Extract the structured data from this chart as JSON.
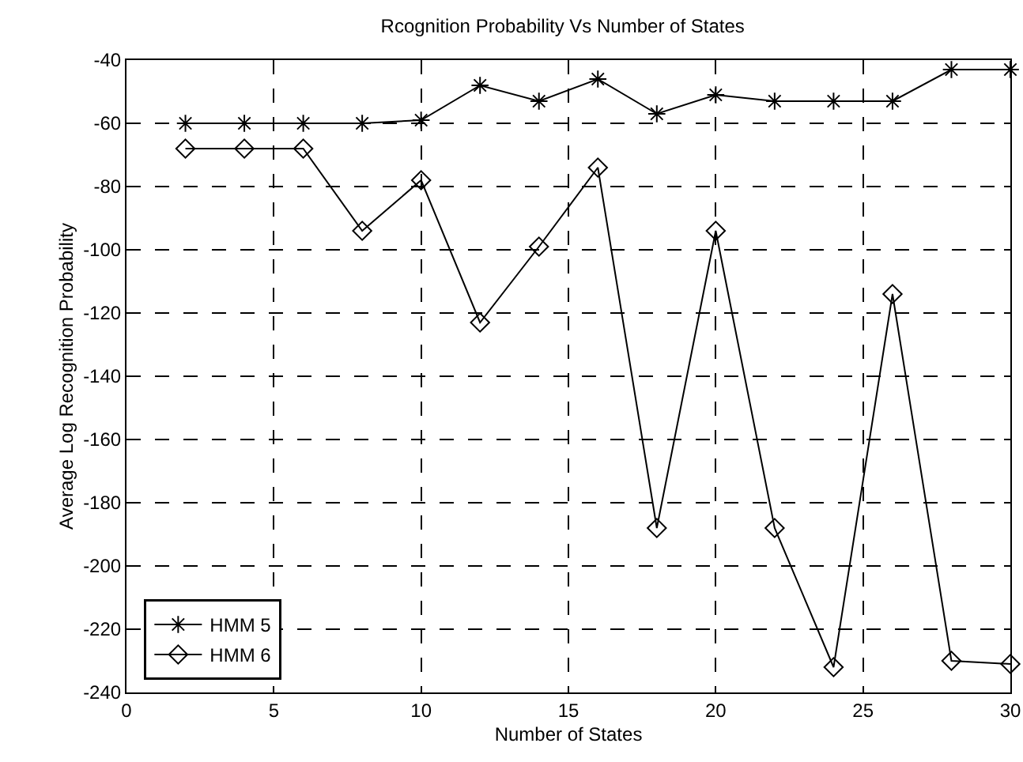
{
  "chart_data": {
    "type": "line",
    "title": "Rcognition Probability Vs Number of States",
    "xlabel": "Number of States",
    "ylabel": "Average Log Recognition Probability",
    "x": [
      2,
      4,
      6,
      8,
      10,
      12,
      14,
      16,
      18,
      20,
      22,
      24,
      26,
      28,
      30
    ],
    "series": [
      {
        "name": "HMM 5",
        "color": "#000000",
        "marker": "cross",
        "values": [
          -60,
          -60,
          -60,
          -60,
          -59,
          -48,
          -53,
          -46,
          -57,
          -51,
          -53,
          -53,
          -53,
          -43,
          -43
        ]
      },
      {
        "name": "HMM 6",
        "color": "#000000",
        "marker": "diamond",
        "values": [
          -68,
          -68,
          -68,
          -94,
          -78,
          -123,
          -99,
          -74,
          -188,
          -94,
          -188,
          -232,
          -114,
          -230,
          -231
        ]
      }
    ],
    "xlim": [
      0,
      30
    ],
    "xticks": [
      0,
      5,
      10,
      15,
      20,
      25,
      30
    ],
    "ylim": [
      -240,
      -40
    ],
    "yticks": [
      -240,
      -220,
      -200,
      -180,
      -160,
      -140,
      -120,
      -100,
      -80,
      -60,
      -40
    ],
    "grid": true,
    "legend": "bottom left",
    "line_style": "solid"
  }
}
